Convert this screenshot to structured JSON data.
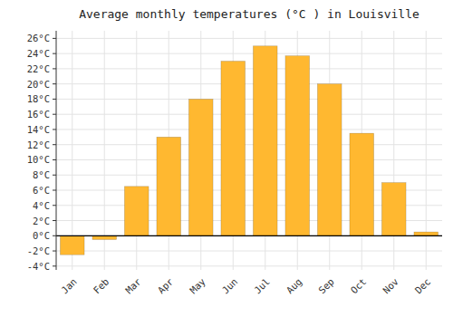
{
  "chart_data": {
    "type": "bar",
    "title": "Average monthly temperatures (°C ) in Louisville",
    "categories": [
      "Jan",
      "Feb",
      "Mar",
      "Apr",
      "May",
      "Jun",
      "Jul",
      "Aug",
      "Sep",
      "Oct",
      "Nov",
      "Dec"
    ],
    "values": [
      -2.5,
      -0.5,
      6.5,
      13.0,
      18.0,
      23.0,
      25.0,
      23.7,
      20.0,
      13.5,
      7.0,
      0.5
    ],
    "color": "#FFB830",
    "ylim": [
      -4.5,
      27
    ],
    "yticks": [
      {
        "value": -4,
        "label": "-4°C"
      },
      {
        "value": -2,
        "label": "-2°C"
      },
      {
        "value": 0,
        "label": "0°C"
      },
      {
        "value": 2,
        "label": "2°C"
      },
      {
        "value": 4,
        "label": "4°C"
      },
      {
        "value": 6,
        "label": "6°C"
      },
      {
        "value": 8,
        "label": "8°C"
      },
      {
        "value": 10,
        "label": "10°C"
      },
      {
        "value": 12,
        "label": "12°C"
      },
      {
        "value": 14,
        "label": "14°C"
      },
      {
        "value": 16,
        "label": "16°C"
      },
      {
        "value": 18,
        "label": "18°C"
      },
      {
        "value": 20,
        "label": "20°C"
      },
      {
        "value": 22,
        "label": "22°C"
      },
      {
        "value": 24,
        "label": "24°C"
      },
      {
        "value": 26,
        "label": "26°C"
      }
    ],
    "grid": true
  }
}
